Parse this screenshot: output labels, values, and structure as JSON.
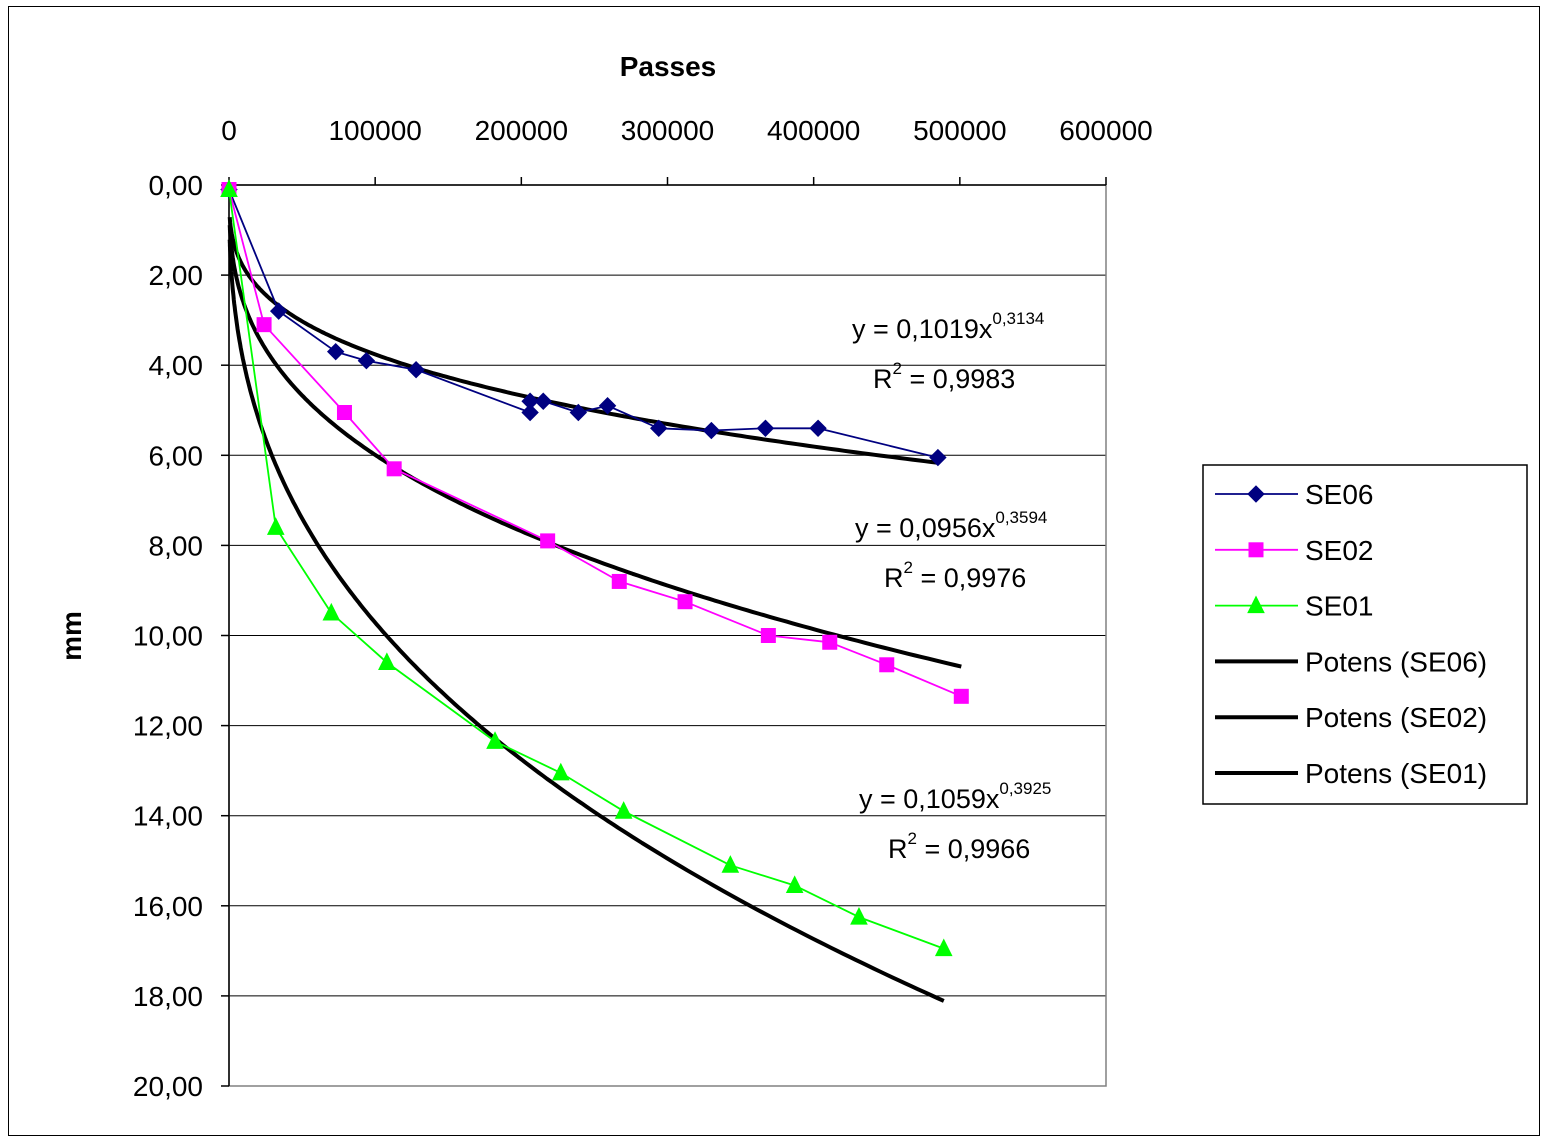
{
  "chart_data": {
    "type": "scatter",
    "title": "",
    "xlabel": "Passes",
    "ylabel": "mm",
    "xlim": [
      0,
      600000
    ],
    "ylim": [
      0,
      20
    ],
    "y_inverted": true,
    "x_axis_position": "top",
    "grid": "horizontal",
    "legend_position": "right",
    "x_ticks": [
      "0",
      "100000",
      "200000",
      "300000",
      "400000",
      "500000",
      "600000"
    ],
    "y_ticks": [
      "0,00",
      "2,00",
      "4,00",
      "6,00",
      "8,00",
      "10,00",
      "12,00",
      "14,00",
      "16,00",
      "18,00",
      "20,00"
    ],
    "series": [
      {
        "name": "SE06",
        "color": "#000080",
        "marker": "diamond",
        "points": [
          [
            0,
            0.1
          ],
          [
            34000,
            2.8
          ],
          [
            73000,
            3.7
          ],
          [
            94000,
            3.9
          ],
          [
            128000,
            4.1
          ],
          [
            206000,
            5.05
          ],
          [
            206000,
            4.8
          ],
          [
            215000,
            4.8
          ],
          [
            239000,
            5.05
          ],
          [
            259000,
            4.9
          ],
          [
            294000,
            5.4
          ],
          [
            330000,
            5.45
          ],
          [
            367000,
            5.4
          ],
          [
            403000,
            5.4
          ],
          [
            485000,
            6.05
          ]
        ]
      },
      {
        "name": "SE02",
        "color": "#ff00ff",
        "marker": "square",
        "points": [
          [
            0,
            0.1
          ],
          [
            24000,
            3.1
          ],
          [
            79000,
            5.05
          ],
          [
            113000,
            6.3
          ],
          [
            218000,
            7.9
          ],
          [
            267000,
            8.8
          ],
          [
            312000,
            9.25
          ],
          [
            369000,
            10.0
          ],
          [
            411000,
            10.15
          ],
          [
            450000,
            10.65
          ],
          [
            501000,
            11.35
          ]
        ]
      },
      {
        "name": "SE01",
        "color": "#00ff00",
        "marker": "triangle",
        "points": [
          [
            0,
            0.1
          ],
          [
            32000,
            7.6
          ],
          [
            70000,
            9.5
          ],
          [
            108000,
            10.6
          ],
          [
            182000,
            12.35
          ],
          [
            227000,
            13.05
          ],
          [
            270000,
            13.9
          ],
          [
            343000,
            15.1
          ],
          [
            387000,
            15.55
          ],
          [
            431000,
            16.25
          ],
          [
            489000,
            16.95
          ]
        ]
      },
      {
        "name": "Potens (SE06)",
        "color": "#000000",
        "fit": {
          "a": 0.1019,
          "b": 0.3134,
          "x_from": 500,
          "x_to": 485000
        }
      },
      {
        "name": "Potens (SE02)",
        "color": "#000000",
        "fit": {
          "a": 0.0956,
          "b": 0.3594,
          "x_from": 500,
          "x_to": 501000
        }
      },
      {
        "name": "Potens (SE01)",
        "color": "#000000",
        "fit": {
          "a": 0.1059,
          "b": 0.3925,
          "x_from": 500,
          "x_to": 489000
        }
      }
    ],
    "annotations": [
      {
        "id": "SE06",
        "eq_base": "y = 0,1019x",
        "eq_exp": "0,3134",
        "r2_label": "R",
        "r2_exp": "2",
        "r2_value": " = 0,9983"
      },
      {
        "id": "SE02",
        "eq_base": "y = 0,0956x",
        "eq_exp": "0,3594",
        "r2_label": "R",
        "r2_exp": "2",
        "r2_value": " = 0,9976"
      },
      {
        "id": "SE01",
        "eq_base": "y = 0,1059x",
        "eq_exp": "0,3925",
        "r2_label": "R",
        "r2_exp": "2",
        "r2_value": " = 0,9966"
      }
    ]
  }
}
